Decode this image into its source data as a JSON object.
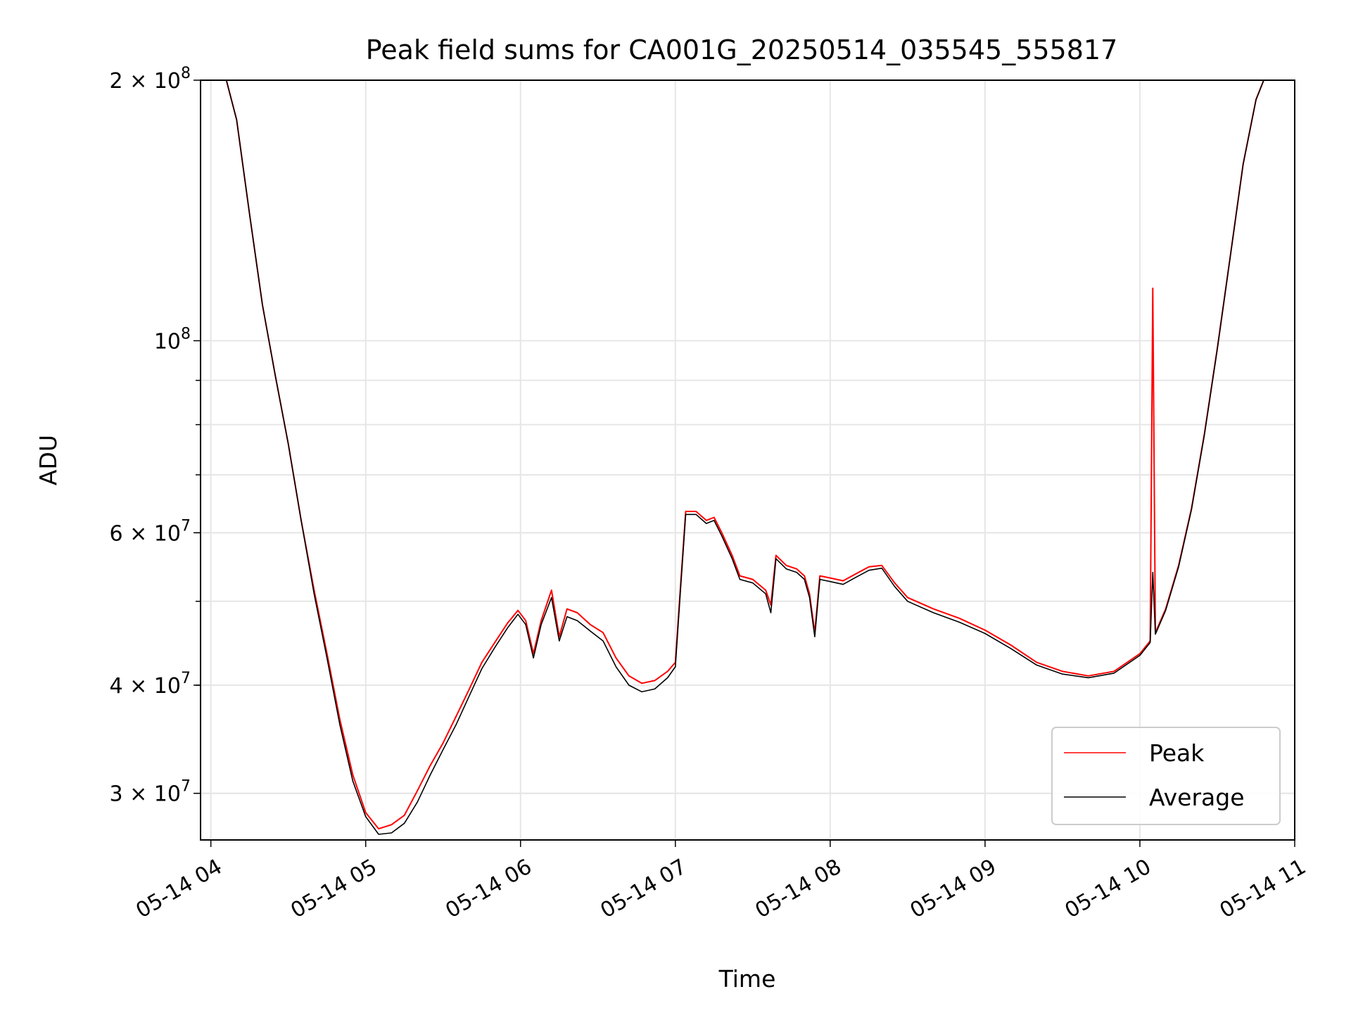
{
  "chart_data": {
    "type": "line",
    "title": "Peak field sums for CA001G_20250514_035545_555817",
    "xlabel": "Time",
    "ylabel": "ADU",
    "yscale": "log",
    "xlim": [
      "2025-05-14 03:56",
      "2025-05-14 11:00"
    ],
    "ylim": [
      26500000,
      200000000
    ],
    "grid": true,
    "legend": "lower-right",
    "x_ticks": [
      "05-14 04",
      "05-14 05",
      "05-14 06",
      "05-14 07",
      "05-14 08",
      "05-14 09",
      "05-14 10",
      "05-14 11"
    ],
    "y_ticks": [
      {
        "value": 200000000,
        "mant": "2 × 10",
        "exp": "8"
      },
      {
        "value": 100000000,
        "mant": "10",
        "exp": "8"
      },
      {
        "value": 60000000,
        "mant": "6 × 10",
        "exp": "7"
      },
      {
        "value": 40000000,
        "mant": "4 × 10",
        "exp": "7"
      },
      {
        "value": 30000000,
        "mant": "3 × 10",
        "exp": "7"
      }
    ],
    "series": [
      {
        "name": "Peak",
        "color": "#ff0000",
        "points": [
          [
            "2025-05-14 03:56",
            200000000
          ],
          [
            "2025-05-14 04:06",
            200000000
          ],
          [
            "2025-05-14 04:10",
            180000000
          ],
          [
            "2025-05-14 04:15",
            140000000
          ],
          [
            "2025-05-14 04:20",
            110000000
          ],
          [
            "2025-05-14 04:25",
            91000000
          ],
          [
            "2025-05-14 04:30",
            76000000
          ],
          [
            "2025-05-14 04:35",
            62000000
          ],
          [
            "2025-05-14 04:40",
            51500000
          ],
          [
            "2025-05-14 04:45",
            43500000
          ],
          [
            "2025-05-14 04:50",
            36500000
          ],
          [
            "2025-05-14 04:55",
            31500000
          ],
          [
            "2025-05-14 05:00",
            28500000
          ],
          [
            "2025-05-14 05:05",
            27300000
          ],
          [
            "2025-05-14 05:10",
            27600000
          ],
          [
            "2025-05-14 05:15",
            28300000
          ],
          [
            "2025-05-14 05:20",
            30200000
          ],
          [
            "2025-05-14 05:25",
            32300000
          ],
          [
            "2025-05-14 05:30",
            34300000
          ],
          [
            "2025-05-14 05:35",
            36800000
          ],
          [
            "2025-05-14 05:40",
            39500000
          ],
          [
            "2025-05-14 05:45",
            42500000
          ],
          [
            "2025-05-14 05:50",
            44800000
          ],
          [
            "2025-05-14 05:55",
            47200000
          ],
          [
            "2025-05-14 05:59",
            48800000
          ],
          [
            "2025-05-14 06:02",
            47500000
          ],
          [
            "2025-05-14 06:05",
            43500000
          ],
          [
            "2025-05-14 06:08",
            47500000
          ],
          [
            "2025-05-14 06:12",
            51500000
          ],
          [
            "2025-05-14 06:15",
            45500000
          ],
          [
            "2025-05-14 06:18",
            49000000
          ],
          [
            "2025-05-14 06:22",
            48500000
          ],
          [
            "2025-05-14 06:27",
            47000000
          ],
          [
            "2025-05-14 06:32",
            46000000
          ],
          [
            "2025-05-14 06:37",
            43000000
          ],
          [
            "2025-05-14 06:42",
            41000000
          ],
          [
            "2025-05-14 06:47",
            40200000
          ],
          [
            "2025-05-14 06:52",
            40500000
          ],
          [
            "2025-05-14 06:57",
            41500000
          ],
          [
            "2025-05-14 07:00",
            42500000
          ],
          [
            "2025-05-14 07:02",
            52000000
          ],
          [
            "2025-05-14 07:04",
            63500000
          ],
          [
            "2025-05-14 07:08",
            63500000
          ],
          [
            "2025-05-14 07:12",
            62000000
          ],
          [
            "2025-05-14 07:15",
            62500000
          ],
          [
            "2025-05-14 07:18",
            60000000
          ],
          [
            "2025-05-14 07:22",
            56500000
          ],
          [
            "2025-05-14 07:25",
            53500000
          ],
          [
            "2025-05-14 07:30",
            53000000
          ],
          [
            "2025-05-14 07:35",
            51500000
          ],
          [
            "2025-05-14 07:37",
            49500000
          ],
          [
            "2025-05-14 07:39",
            56500000
          ],
          [
            "2025-05-14 07:43",
            55000000
          ],
          [
            "2025-05-14 07:47",
            54500000
          ],
          [
            "2025-05-14 07:50",
            53500000
          ],
          [
            "2025-05-14 07:52",
            51000000
          ],
          [
            "2025-05-14 07:54",
            46000000
          ],
          [
            "2025-05-14 07:56",
            53500000
          ],
          [
            "2025-05-14 08:00",
            53200000
          ],
          [
            "2025-05-14 08:05",
            52800000
          ],
          [
            "2025-05-14 08:10",
            53800000
          ],
          [
            "2025-05-14 08:15",
            54800000
          ],
          [
            "2025-05-14 08:20",
            55000000
          ],
          [
            "2025-05-14 08:25",
            52500000
          ],
          [
            "2025-05-14 08:30",
            50500000
          ],
          [
            "2025-05-14 08:40",
            49000000
          ],
          [
            "2025-05-14 08:50",
            47800000
          ],
          [
            "2025-05-14 09:00",
            46300000
          ],
          [
            "2025-05-14 09:10",
            44500000
          ],
          [
            "2025-05-14 09:20",
            42500000
          ],
          [
            "2025-05-14 09:30",
            41500000
          ],
          [
            "2025-05-14 09:40",
            41000000
          ],
          [
            "2025-05-14 09:50",
            41500000
          ],
          [
            "2025-05-14 10:00",
            43500000
          ],
          [
            "2025-05-14 10:04",
            45000000
          ],
          [
            "2025-05-14 10:05",
            115000000
          ],
          [
            "2025-05-14 10:06",
            46000000
          ],
          [
            "2025-05-14 10:10",
            49000000
          ],
          [
            "2025-05-14 10:15",
            55000000
          ],
          [
            "2025-05-14 10:20",
            64000000
          ],
          [
            "2025-05-14 10:25",
            78000000
          ],
          [
            "2025-05-14 10:30",
            98000000
          ],
          [
            "2025-05-14 10:35",
            125000000
          ],
          [
            "2025-05-14 10:40",
            160000000
          ],
          [
            "2025-05-14 10:45",
            190000000
          ],
          [
            "2025-05-14 10:48",
            200000000
          ],
          [
            "2025-05-14 11:00",
            200000000
          ]
        ]
      },
      {
        "name": "Average",
        "color": "#000000",
        "points": [
          [
            "2025-05-14 03:56",
            200000000
          ],
          [
            "2025-05-14 04:06",
            200000000
          ],
          [
            "2025-05-14 04:10",
            180000000
          ],
          [
            "2025-05-14 04:15",
            140000000
          ],
          [
            "2025-05-14 04:20",
            110000000
          ],
          [
            "2025-05-14 04:25",
            91000000
          ],
          [
            "2025-05-14 04:30",
            76000000
          ],
          [
            "2025-05-14 04:35",
            62000000
          ],
          [
            "2025-05-14 04:40",
            51000000
          ],
          [
            "2025-05-14 04:45",
            43000000
          ],
          [
            "2025-05-14 04:50",
            36000000
          ],
          [
            "2025-05-14 04:55",
            31000000
          ],
          [
            "2025-05-14 05:00",
            28200000
          ],
          [
            "2025-05-14 05:05",
            26900000
          ],
          [
            "2025-05-14 05:10",
            27000000
          ],
          [
            "2025-05-14 05:15",
            27700000
          ],
          [
            "2025-05-14 05:20",
            29300000
          ],
          [
            "2025-05-14 05:25",
            31500000
          ],
          [
            "2025-05-14 05:30",
            33700000
          ],
          [
            "2025-05-14 05:35",
            36000000
          ],
          [
            "2025-05-14 05:40",
            38800000
          ],
          [
            "2025-05-14 05:45",
            41800000
          ],
          [
            "2025-05-14 05:50",
            44200000
          ],
          [
            "2025-05-14 05:55",
            46600000
          ],
          [
            "2025-05-14 05:59",
            48300000
          ],
          [
            "2025-05-14 06:02",
            47000000
          ],
          [
            "2025-05-14 06:05",
            43000000
          ],
          [
            "2025-05-14 06:08",
            47000000
          ],
          [
            "2025-05-14 06:12",
            50500000
          ],
          [
            "2025-05-14 06:15",
            45000000
          ],
          [
            "2025-05-14 06:18",
            48000000
          ],
          [
            "2025-05-14 06:22",
            47500000
          ],
          [
            "2025-05-14 06:27",
            46200000
          ],
          [
            "2025-05-14 06:32",
            45000000
          ],
          [
            "2025-05-14 06:37",
            42000000
          ],
          [
            "2025-05-14 06:42",
            40000000
          ],
          [
            "2025-05-14 06:47",
            39300000
          ],
          [
            "2025-05-14 06:52",
            39600000
          ],
          [
            "2025-05-14 06:57",
            40800000
          ],
          [
            "2025-05-14 07:00",
            42000000
          ],
          [
            "2025-05-14 07:02",
            51500000
          ],
          [
            "2025-05-14 07:04",
            63000000
          ],
          [
            "2025-05-14 07:08",
            63000000
          ],
          [
            "2025-05-14 07:12",
            61500000
          ],
          [
            "2025-05-14 07:15",
            62000000
          ],
          [
            "2025-05-14 07:18",
            59500000
          ],
          [
            "2025-05-14 07:22",
            56000000
          ],
          [
            "2025-05-14 07:25",
            53000000
          ],
          [
            "2025-05-14 07:30",
            52500000
          ],
          [
            "2025-05-14 07:35",
            51000000
          ],
          [
            "2025-05-14 07:37",
            48500000
          ],
          [
            "2025-05-14 07:39",
            56000000
          ],
          [
            "2025-05-14 07:43",
            54500000
          ],
          [
            "2025-05-14 07:47",
            54000000
          ],
          [
            "2025-05-14 07:50",
            53000000
          ],
          [
            "2025-05-14 07:52",
            50500000
          ],
          [
            "2025-05-14 07:54",
            45500000
          ],
          [
            "2025-05-14 07:56",
            53000000
          ],
          [
            "2025-05-14 08:00",
            52700000
          ],
          [
            "2025-05-14 08:05",
            52300000
          ],
          [
            "2025-05-14 08:10",
            53300000
          ],
          [
            "2025-05-14 08:15",
            54300000
          ],
          [
            "2025-05-14 08:20",
            54600000
          ],
          [
            "2025-05-14 08:25",
            52000000
          ],
          [
            "2025-05-14 08:30",
            50000000
          ],
          [
            "2025-05-14 08:40",
            48500000
          ],
          [
            "2025-05-14 08:50",
            47300000
          ],
          [
            "2025-05-14 09:00",
            45900000
          ],
          [
            "2025-05-14 09:10",
            44100000
          ],
          [
            "2025-05-14 09:20",
            42200000
          ],
          [
            "2025-05-14 09:30",
            41200000
          ],
          [
            "2025-05-14 09:40",
            40800000
          ],
          [
            "2025-05-14 09:50",
            41300000
          ],
          [
            "2025-05-14 10:00",
            43300000
          ],
          [
            "2025-05-14 10:04",
            44800000
          ],
          [
            "2025-05-14 10:05",
            54000000
          ],
          [
            "2025-05-14 10:06",
            45800000
          ],
          [
            "2025-05-14 10:10",
            48800000
          ],
          [
            "2025-05-14 10:15",
            54800000
          ],
          [
            "2025-05-14 10:20",
            63800000
          ],
          [
            "2025-05-14 10:25",
            77800000
          ],
          [
            "2025-05-14 10:30",
            97800000
          ],
          [
            "2025-05-14 10:35",
            124800000
          ],
          [
            "2025-05-14 10:40",
            159800000
          ],
          [
            "2025-05-14 10:45",
            189800000
          ],
          [
            "2025-05-14 10:48",
            200000000
          ],
          [
            "2025-05-14 11:00",
            200000000
          ]
        ]
      }
    ]
  }
}
